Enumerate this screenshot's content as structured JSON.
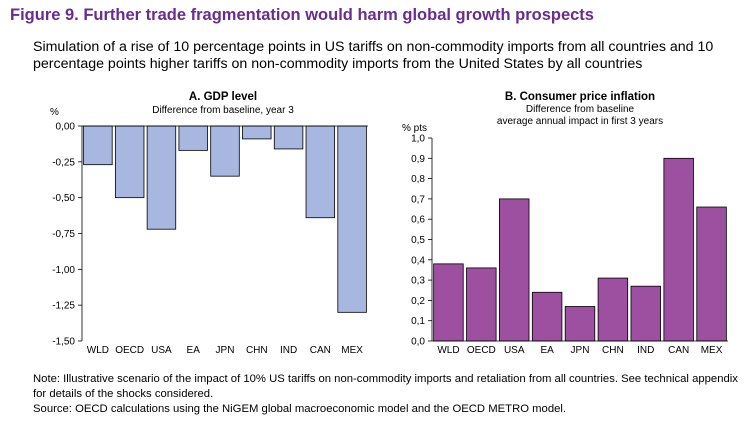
{
  "figure": {
    "title": "Figure 9. Further trade fragmentation would harm global growth prospects",
    "subtitle": "Simulation of a rise of 10 percentage points in US tariffs on non-commodity imports from all countries and 10 percentage points higher tariffs on non-commodity imports from the United States by all countries",
    "note_line1": "Note: Illustrative scenario of the impact of 10% US tariffs on non-commodity imports and retaliation from all countries. See technical appendix",
    "note_line2": "for details of the shocks considered.",
    "source": "Source: OECD calculations using the NiGEM global macroeconomic model and the OECD METRO model."
  },
  "colors": {
    "panel_a_bar": "#a7b7e0",
    "panel_b_bar": "#9d4fa0",
    "bar_stroke": "#000000",
    "title": "#6a2c91"
  },
  "chart_data": [
    {
      "type": "bar",
      "title": "A. GDP level",
      "subtitle": "Difference from baseline, year 3",
      "ylabel": "%",
      "xlabel": "",
      "categories": [
        "WLD",
        "OECD",
        "USA",
        "EA",
        "JPN",
        "CHN",
        "IND",
        "CAN",
        "MEX"
      ],
      "values": [
        -0.27,
        -0.5,
        -0.72,
        -0.17,
        -0.35,
        -0.09,
        -0.16,
        -0.64,
        -1.3
      ],
      "ylim": [
        -1.5,
        0
      ],
      "yticks": [
        "0,00",
        "-0,25",
        "-0,50",
        "-0,75",
        "-1,00",
        "-1,25",
        "-1,50"
      ],
      "ytick_values": [
        0,
        -0.25,
        -0.5,
        -0.75,
        -1.0,
        -1.25,
        -1.5
      ],
      "grid": false
    },
    {
      "type": "bar",
      "title": "B. Consumer price inflation",
      "subtitle": "Difference from baseline",
      "subtitle2": "average annual impact in first 3 years",
      "ylabel": "% pts",
      "xlabel": "",
      "categories": [
        "WLD",
        "OECD",
        "USA",
        "EA",
        "JPN",
        "CHN",
        "IND",
        "CAN",
        "MEX"
      ],
      "values": [
        0.38,
        0.36,
        0.7,
        0.24,
        0.17,
        0.31,
        0.27,
        0.9,
        0.66
      ],
      "ylim": [
        0,
        1.0
      ],
      "yticks": [
        "1,0",
        "0,9",
        "0,8",
        "0,7",
        "0,6",
        "0,5",
        "0,4",
        "0,3",
        "0,2",
        "0,1",
        "0,0"
      ],
      "ytick_values": [
        1.0,
        0.9,
        0.8,
        0.7,
        0.6,
        0.5,
        0.4,
        0.3,
        0.2,
        0.1,
        0.0
      ],
      "grid": false
    }
  ]
}
